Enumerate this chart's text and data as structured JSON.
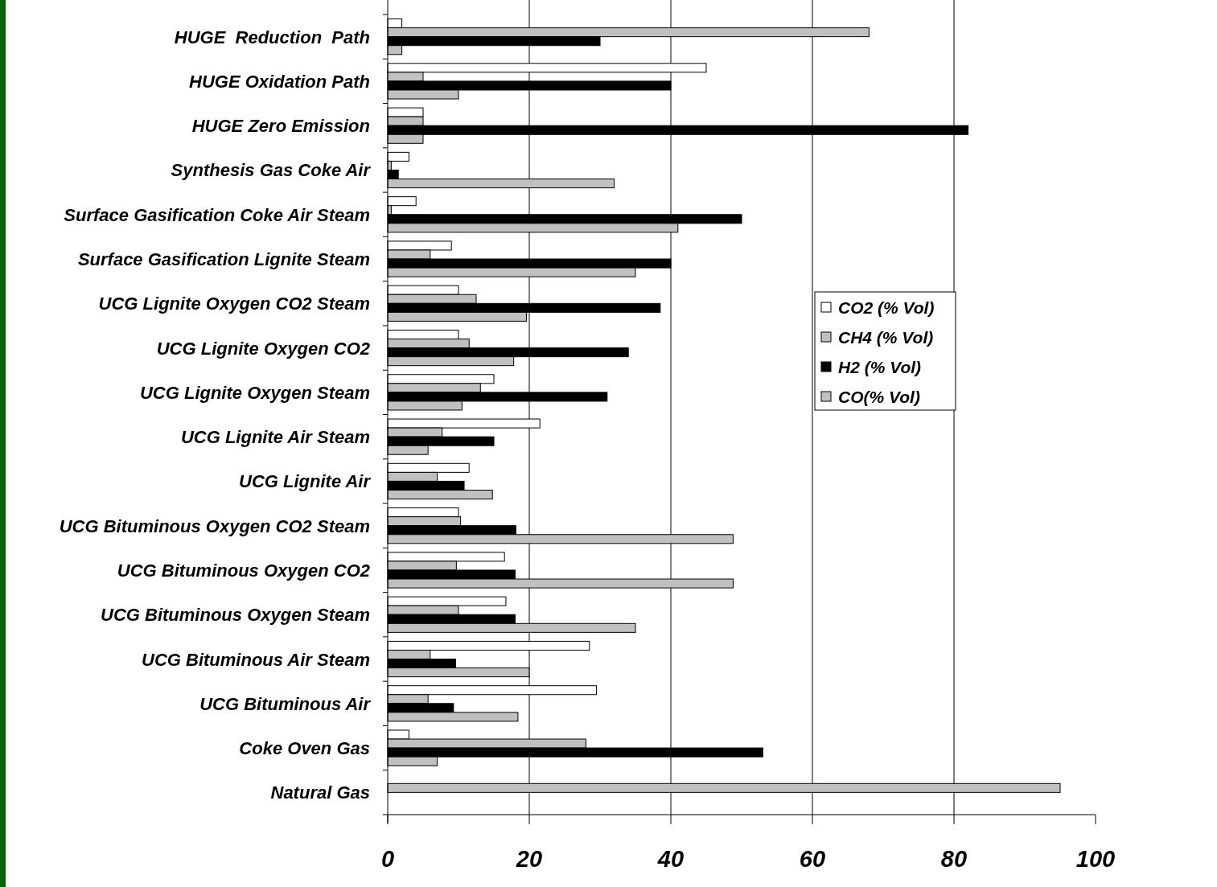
{
  "chart_data": {
    "type": "bar",
    "orientation": "horizontal",
    "categories": [
      "HUGE  Reduction  Path",
      "HUGE Oxidation Path",
      "HUGE Zero Emission",
      "Synthesis Gas Coke Air",
      "Surface Gasification Coke Air Steam",
      "Surface Gasification Lignite Steam",
      "UCG Lignite Oxygen CO2 Steam",
      "UCG Lignite Oxygen CO2",
      "UCG Lignite Oxygen Steam",
      "UCG Lignite Air Steam",
      "UCG Lignite Air",
      "UCG Bituminous Oxygen CO2 Steam",
      "UCG Bituminous Oxygen CO2",
      "UCG Bituminous Oxygen Steam",
      "UCG Bituminous Air Steam",
      "UCG Bituminous Air",
      "Coke Oven Gas",
      "Natural Gas"
    ],
    "series": [
      {
        "name": "CO2 (% Vol)",
        "color": "#ffffff",
        "values": [
          2,
          45,
          5,
          3,
          4,
          9,
          10,
          10,
          15,
          21.5,
          11.5,
          10,
          16.5,
          16.7,
          28.5,
          29.5,
          3,
          0
        ]
      },
      {
        "name": "CH4 (% Vol)",
        "color": "#c0c0c0",
        "values": [
          68,
          5,
          5,
          0.5,
          0.5,
          6,
          12.5,
          11.5,
          13.1,
          7.7,
          7,
          10.3,
          9.7,
          10,
          6,
          5.7,
          28,
          95
        ]
      },
      {
        "name": "H2 (% Vol)",
        "color": "#000000",
        "values": [
          30,
          40,
          82,
          1.5,
          50,
          40,
          38.5,
          34,
          31,
          15,
          10.8,
          18.1,
          18,
          18,
          9.6,
          9.3,
          53,
          0
        ]
      },
      {
        "name": "CO(% Vol)",
        "color": "#c0c0c0",
        "values": [
          2,
          10,
          5,
          32,
          41,
          35,
          19.6,
          17.8,
          10.5,
          5.7,
          14.8,
          48.8,
          48.8,
          35,
          20,
          18.4,
          7,
          0
        ]
      }
    ],
    "xlim": [
      0,
      100
    ],
    "xticks": [
      0,
      20,
      40,
      60,
      80,
      100
    ],
    "grid": "x",
    "legend": "right"
  }
}
